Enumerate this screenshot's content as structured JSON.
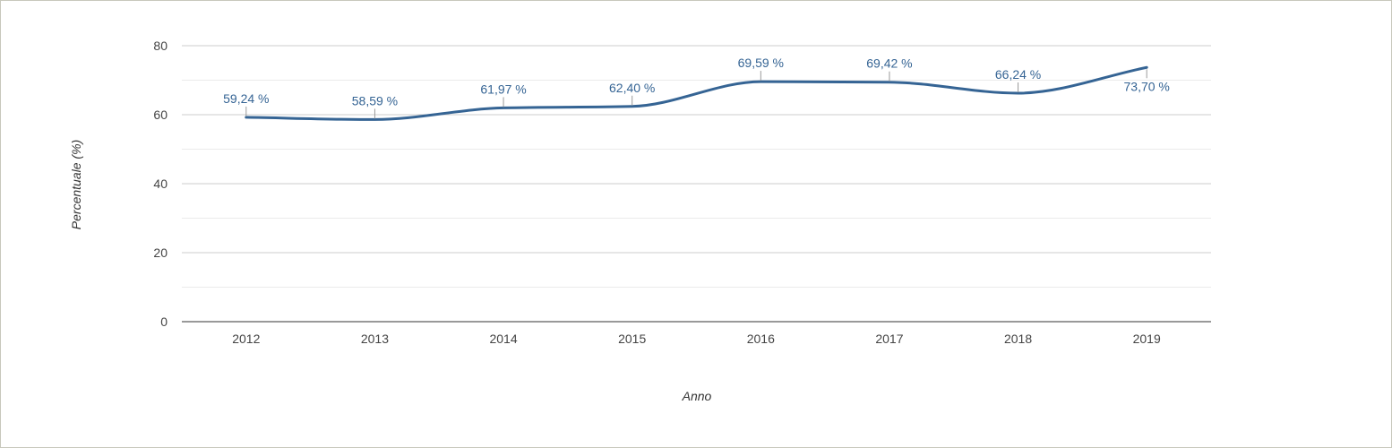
{
  "chart_data": {
    "type": "line",
    "title": "",
    "xlabel": "Anno",
    "ylabel": "Percentuale (%)",
    "x": [
      "2012",
      "2013",
      "2014",
      "2015",
      "2016",
      "2017",
      "2018",
      "2019"
    ],
    "series": [
      {
        "values": [
          59.24,
          58.59,
          61.97,
          62.4,
          69.59,
          69.42,
          66.24,
          73.7
        ],
        "labels": [
          "59,24 %",
          "58,59 %",
          "61,97 %",
          "62,40 %",
          "69,59 %",
          "69,42 %",
          "66,24 %",
          "73,70 %"
        ],
        "color": "#356494"
      }
    ],
    "ylim": [
      0,
      80
    ],
    "yticks": [
      0,
      20,
      40,
      60,
      80
    ],
    "y_tick_labels": [
      "0",
      "20",
      "40",
      "60",
      "80"
    ],
    "grid": true,
    "smooth": true,
    "legend": "none"
  }
}
